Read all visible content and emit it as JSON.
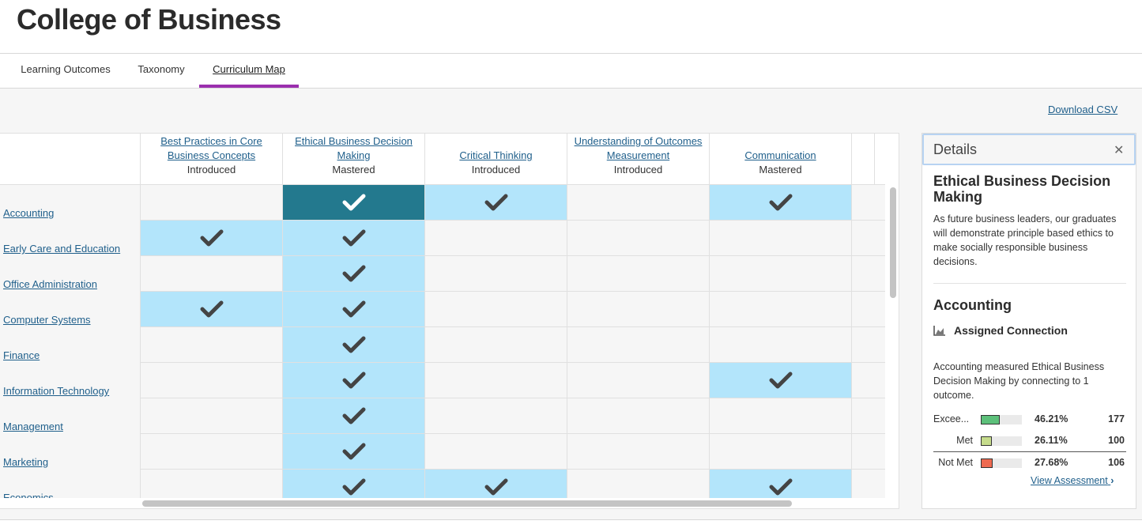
{
  "page": {
    "title": "College of Business"
  },
  "tabs": [
    {
      "label": "Learning Outcomes",
      "active": false
    },
    {
      "label": "Taxonomy",
      "active": false
    },
    {
      "label": "Curriculum Map",
      "active": true
    }
  ],
  "toolbar": {
    "download_label": "Download CSV"
  },
  "outcomes": [
    {
      "name": "Best Practices in Core Business Concepts",
      "level": "Introduced"
    },
    {
      "name": "Ethical Business Decision Making",
      "level": "Mastered"
    },
    {
      "name": "Critical Thinking",
      "level": "Introduced"
    },
    {
      "name": "Understanding of Outcomes Measurement",
      "level": "Introduced"
    },
    {
      "name": "Communication",
      "level": "Mastered"
    }
  ],
  "programs": [
    {
      "name": "Accounting",
      "cells": [
        false,
        true,
        true,
        false,
        true
      ]
    },
    {
      "name": "Early Care and Education",
      "cells": [
        true,
        true,
        false,
        false,
        false
      ]
    },
    {
      "name": "Office Administration",
      "cells": [
        false,
        true,
        false,
        false,
        false
      ]
    },
    {
      "name": "Computer Systems",
      "cells": [
        true,
        true,
        false,
        false,
        false
      ]
    },
    {
      "name": "Finance",
      "cells": [
        false,
        true,
        false,
        false,
        false
      ]
    },
    {
      "name": "Information Technology",
      "cells": [
        false,
        true,
        false,
        false,
        true
      ]
    },
    {
      "name": "Management",
      "cells": [
        false,
        true,
        false,
        false,
        false
      ]
    },
    {
      "name": "Marketing",
      "cells": [
        false,
        true,
        false,
        false,
        false
      ]
    },
    {
      "name": "Economics",
      "cells": [
        false,
        true,
        true,
        false,
        true
      ]
    }
  ],
  "selected_cell": {
    "program": "Accounting",
    "outcome": "Ethical Business Decision Making"
  },
  "colors": {
    "accent": "#9b2fae",
    "mapped": "#b3e5fb",
    "selected": "#23798e",
    "link": "#1f5f8b"
  },
  "details": {
    "title": "Details",
    "close_icon": "close-icon",
    "outcome_title": "Ethical Business Decision Making",
    "outcome_description": "As future business leaders, our graduates will demonstrate principle based ethics to make socially responsible business decisions.",
    "program_title": "Accounting",
    "connection_label": "Assigned Connection",
    "measurement_text": "Accounting measured Ethical Business Decision Making by connecting to 1 outcome.",
    "stats": [
      {
        "label": "Excee...",
        "percent": "46.21%",
        "count": "177",
        "fraction": 0.46,
        "color": "#5cc07a"
      },
      {
        "label": "Met",
        "percent": "26.11%",
        "count": "100",
        "fraction": 0.26,
        "color": "#c6dc8c"
      },
      {
        "label": "Not Met",
        "percent": "27.68%",
        "count": "106",
        "fraction": 0.28,
        "color": "#ee6a50"
      }
    ],
    "view_link": "View Assessment"
  }
}
